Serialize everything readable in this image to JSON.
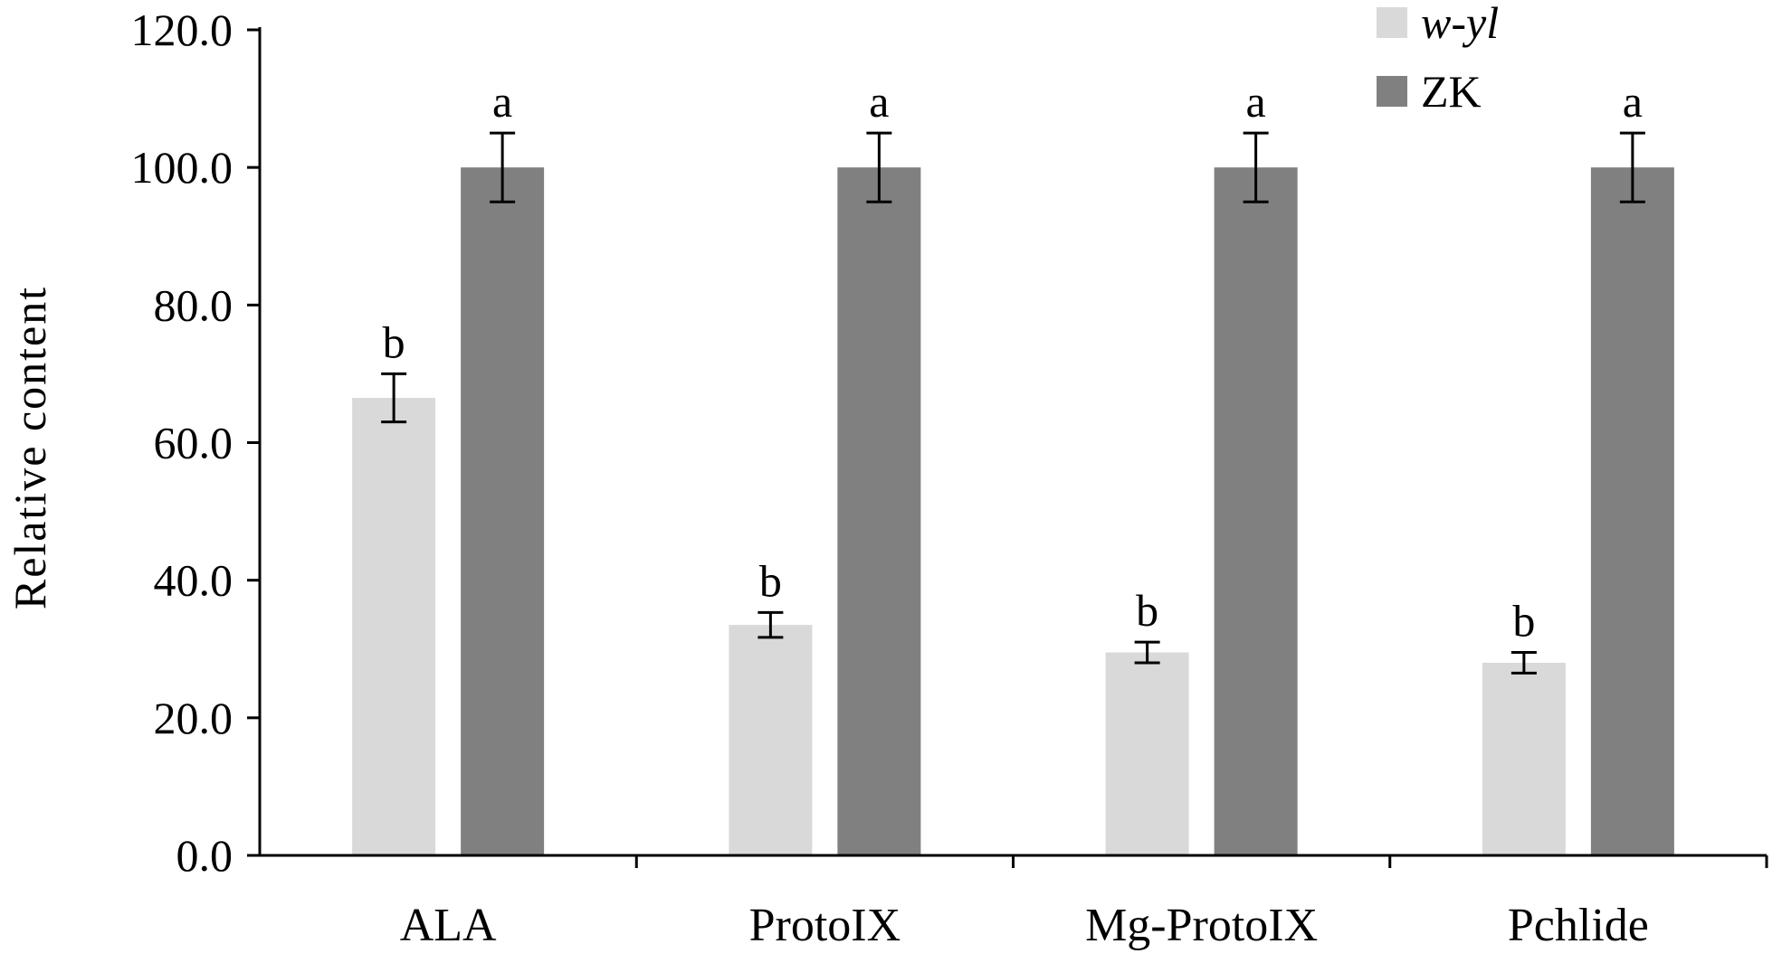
{
  "chart_data": {
    "type": "bar",
    "categories": [
      "ALA",
      "ProtoIX",
      "Mg-ProtoIX",
      "Pchlide"
    ],
    "ylabel": "Relative content",
    "ylim": [
      0,
      120
    ],
    "yticks": [
      "0.0",
      "20.0",
      "40.0",
      "60.0",
      "80.0",
      "100.0",
      "120.0"
    ],
    "ytick_values": [
      0,
      20,
      40,
      60,
      80,
      100,
      120
    ],
    "grid": false,
    "legend_position": "top-right",
    "series": [
      {
        "name": "w-yl",
        "color": "#d9d9d9",
        "values": [
          66.5,
          33.5,
          29.5,
          28.0
        ],
        "errors": [
          3.5,
          1.8,
          1.5,
          1.5
        ],
        "labels": [
          "b",
          "b",
          "b",
          "b"
        ]
      },
      {
        "name": "ZK",
        "color": "#808080",
        "values": [
          100.0,
          100.0,
          100.0,
          100.0
        ],
        "errors": [
          5.0,
          5.0,
          5.0,
          5.0
        ],
        "labels": [
          "a",
          "a",
          "a",
          "a"
        ]
      }
    ]
  }
}
